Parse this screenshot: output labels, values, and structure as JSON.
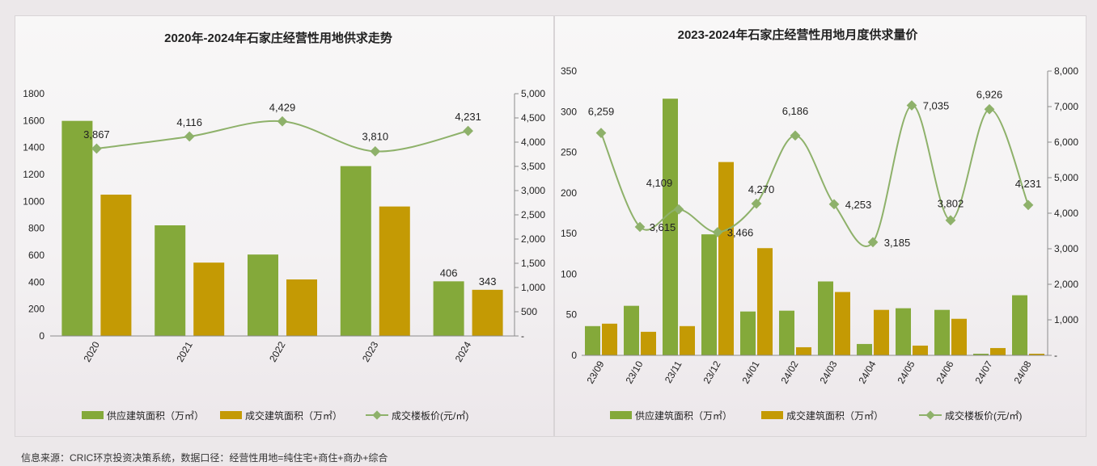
{
  "footnote": "信息来源：CRIC环京投资决策系统，数据口径：经营性用地=纯住宅+商住+商办+综合",
  "colors": {
    "supply": "#84a93a",
    "deal": "#c49a04",
    "price": "#8eb16a"
  },
  "chart_data": [
    {
      "type": "bar",
      "title": "2020年-2024年石家庄经营性用地供求走势",
      "categories": [
        "2020",
        "2021",
        "2022",
        "2023",
        "2024"
      ],
      "series": [
        {
          "name": "供应建筑面积（万㎡）",
          "type": "bar",
          "axis": "left",
          "values": [
            1598,
            822,
            605,
            1262,
            406
          ]
        },
        {
          "name": "成交建筑面积（万㎡）",
          "type": "bar",
          "axis": "left",
          "values": [
            1050,
            545,
            420,
            962,
            343
          ]
        },
        {
          "name": "成交楼板价(元/㎡)",
          "type": "line",
          "axis": "right",
          "values": [
            3867,
            4116,
            4429,
            3810,
            4231
          ]
        }
      ],
      "bar_value_labels": [
        {
          "series": 0,
          "index": 4,
          "text": "406"
        },
        {
          "series": 1,
          "index": 4,
          "text": "343"
        }
      ],
      "line_value_labels": [
        "3,867",
        "4,116",
        "4,429",
        "3,810",
        "4,231"
      ],
      "y_left": {
        "ylim": [
          0,
          1800
        ],
        "ticks": [
          "0",
          "200",
          "400",
          "600",
          "800",
          "1000",
          "1200",
          "1400",
          "1600",
          "1800"
        ]
      },
      "y_right": {
        "ylim": [
          0,
          5000
        ],
        "ticks": [
          "-",
          "500",
          "1,000",
          "1,500",
          "2,000",
          "2,500",
          "3,000",
          "3,500",
          "4,000",
          "4,500",
          "5,000"
        ]
      },
      "legend_position": "bottom",
      "grid": false
    },
    {
      "type": "bar",
      "title": "2023-2024年石家庄经营性用地月度供求量价",
      "categories": [
        "23/09",
        "23/10",
        "23/11",
        "23/12",
        "24/01",
        "24/02",
        "24/03",
        "24/04",
        "24/05",
        "24/06",
        "24/07",
        "24/08"
      ],
      "series": [
        {
          "name": "供应建筑面积（万㎡）",
          "type": "bar",
          "axis": "left",
          "values": [
            36,
            61,
            316,
            149,
            54,
            55,
            91,
            14,
            58,
            56,
            2,
            74
          ]
        },
        {
          "name": "成交建筑面积（万㎡）",
          "type": "bar",
          "axis": "left",
          "values": [
            39,
            29,
            36,
            238,
            132,
            10,
            78,
            56,
            12,
            45,
            9,
            2
          ]
        },
        {
          "name": "成交楼板价(元/㎡)",
          "type": "line",
          "axis": "right",
          "values": [
            6259,
            3615,
            4109,
            3466,
            4270,
            6186,
            4253,
            3185,
            7035,
            3802,
            6926,
            4231
          ]
        }
      ],
      "line_value_labels": [
        "6,259",
        "3,615",
        "4,109",
        "3,466",
        "4,270",
        "6,186",
        "4,253",
        "3,185",
        "7,035",
        "3,802",
        "6,926",
        "4,231"
      ],
      "y_left": {
        "ylim": [
          0,
          350
        ],
        "ticks": [
          "0",
          "50",
          "100",
          "150",
          "200",
          "250",
          "300",
          "350"
        ]
      },
      "y_right": {
        "ylim": [
          0,
          8000
        ],
        "ticks": [
          "-",
          "1,000",
          "2,000",
          "3,000",
          "4,000",
          "5,000",
          "6,000",
          "7,000",
          "8,000"
        ]
      },
      "legend_position": "bottom",
      "grid": false
    }
  ]
}
